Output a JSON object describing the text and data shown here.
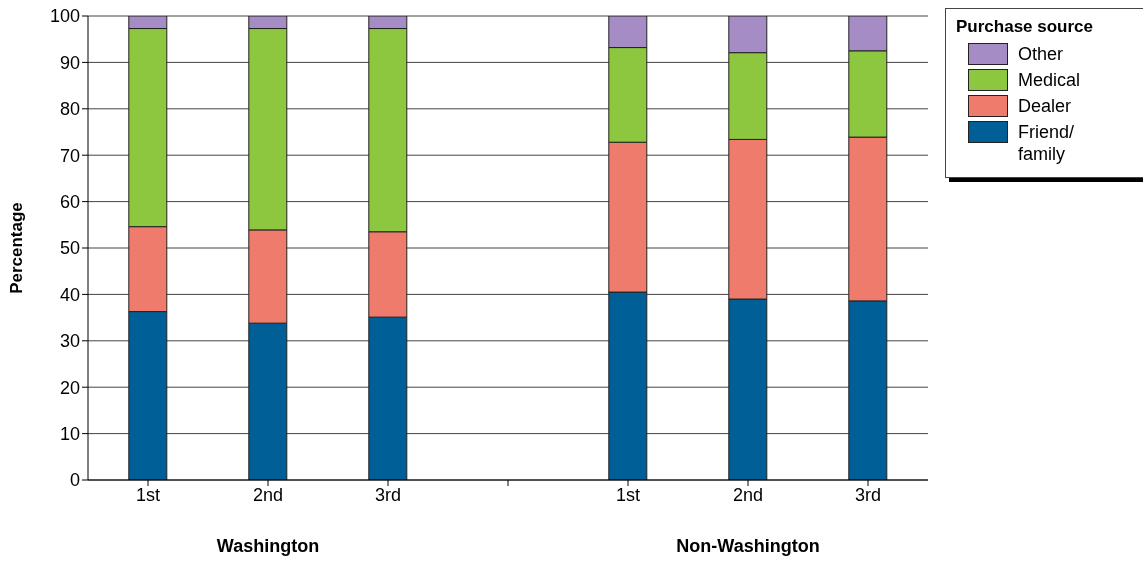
{
  "chart_data": {
    "type": "bar",
    "stacked": true,
    "ylabel": "Percentage",
    "legend_title": "Purchase source",
    "legend": "right",
    "grid": "y",
    "categories": [
      "1st",
      "2nd",
      "3rd",
      null,
      "1st",
      "2nd",
      "3rd"
    ],
    "series": [
      {
        "name": "Friend/ family",
        "color": "#005f96",
        "values": [
          36.3,
          33.8,
          35.1,
          null,
          40.5,
          39.0,
          38.6
        ]
      },
      {
        "name": "Dealer",
        "color": "#ee7b6b",
        "values": [
          18.3,
          20.1,
          18.4,
          null,
          32.3,
          34.4,
          35.3
        ]
      },
      {
        "name": "Medical",
        "color": "#8dc63f",
        "values": [
          42.7,
          43.4,
          43.8,
          null,
          20.4,
          18.7,
          18.6
        ]
      },
      {
        "name": "Other",
        "color": "#a68cc4",
        "values": [
          2.7,
          2.7,
          2.7,
          null,
          6.8,
          7.9,
          7.5
        ]
      }
    ],
    "ylim": [
      0,
      100
    ],
    "yticks": [
      0,
      10,
      20,
      30,
      40,
      50,
      60,
      70,
      80,
      90,
      100
    ],
    "annotations": [
      "Washington",
      "Non-Washington"
    ]
  }
}
